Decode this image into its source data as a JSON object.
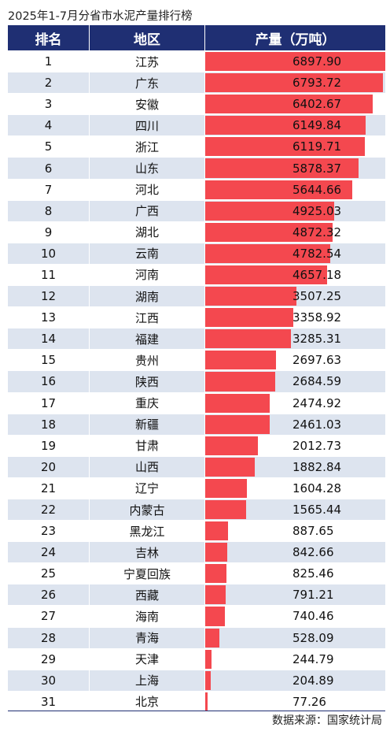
{
  "title": "2025年1-7月分省市水泥产量排行榜",
  "source": "数据来源：国家统计局",
  "colors": {
    "header": "#1f2f73",
    "bar": "#f4484f",
    "row_alt": "#dde4ef"
  },
  "chart_data": {
    "type": "bar",
    "title": "2025年1-7月分省市水泥产量排行榜",
    "columns": [
      "排名",
      "地区",
      "产量（万吨）"
    ],
    "xlim": [
      0,
      6897.9
    ],
    "rows": [
      {
        "rank": "1",
        "region": "江苏",
        "value": 6897.9,
        "label": "6897.90"
      },
      {
        "rank": "2",
        "region": "广东",
        "value": 6793.72,
        "label": "6793.72"
      },
      {
        "rank": "3",
        "region": "安徽",
        "value": 6402.67,
        "label": "6402.67"
      },
      {
        "rank": "4",
        "region": "四川",
        "value": 6149.84,
        "label": "6149.84"
      },
      {
        "rank": "5",
        "region": "浙江",
        "value": 6119.71,
        "label": "6119.71"
      },
      {
        "rank": "6",
        "region": "山东",
        "value": 5878.37,
        "label": "5878.37"
      },
      {
        "rank": "7",
        "region": "河北",
        "value": 5644.66,
        "label": "5644.66"
      },
      {
        "rank": "8",
        "region": "广西",
        "value": 4925.03,
        "label": "4925.03"
      },
      {
        "rank": "9",
        "region": "湖北",
        "value": 4872.32,
        "label": "4872.32"
      },
      {
        "rank": "10",
        "region": "云南",
        "value": 4782.54,
        "label": "4782.54"
      },
      {
        "rank": "11",
        "region": "河南",
        "value": 4657.18,
        "label": "4657.18"
      },
      {
        "rank": "12",
        "region": "湖南",
        "value": 3507.25,
        "label": "3507.25"
      },
      {
        "rank": "13",
        "region": "江西",
        "value": 3358.92,
        "label": "3358.92"
      },
      {
        "rank": "14",
        "region": "福建",
        "value": 3285.31,
        "label": "3285.31"
      },
      {
        "rank": "15",
        "region": "贵州",
        "value": 2697.63,
        "label": "2697.63"
      },
      {
        "rank": "16",
        "region": "陕西",
        "value": 2684.59,
        "label": "2684.59"
      },
      {
        "rank": "17",
        "region": "重庆",
        "value": 2474.92,
        "label": "2474.92"
      },
      {
        "rank": "18",
        "region": "新疆",
        "value": 2461.03,
        "label": "2461.03"
      },
      {
        "rank": "19",
        "region": "甘肃",
        "value": 2012.73,
        "label": "2012.73"
      },
      {
        "rank": "20",
        "region": "山西",
        "value": 1882.84,
        "label": "1882.84"
      },
      {
        "rank": "21",
        "region": "辽宁",
        "value": 1604.28,
        "label": "1604.28"
      },
      {
        "rank": "22",
        "region": "内蒙古",
        "value": 1565.44,
        "label": "1565.44"
      },
      {
        "rank": "23",
        "region": "黑龙江",
        "value": 887.65,
        "label": "887.65"
      },
      {
        "rank": "24",
        "region": "吉林",
        "value": 842.66,
        "label": "842.66"
      },
      {
        "rank": "25",
        "region": "宁夏回族",
        "value": 825.46,
        "label": "825.46"
      },
      {
        "rank": "26",
        "region": "西藏",
        "value": 791.21,
        "label": "791.21"
      },
      {
        "rank": "27",
        "region": "海南",
        "value": 740.46,
        "label": "740.46"
      },
      {
        "rank": "28",
        "region": "青海",
        "value": 528.09,
        "label": "528.09"
      },
      {
        "rank": "29",
        "region": "天津",
        "value": 244.79,
        "label": "244.79"
      },
      {
        "rank": "30",
        "region": "上海",
        "value": 204.89,
        "label": "204.89"
      },
      {
        "rank": "31",
        "region": "北京",
        "value": 77.26,
        "label": "77.26"
      }
    ]
  }
}
